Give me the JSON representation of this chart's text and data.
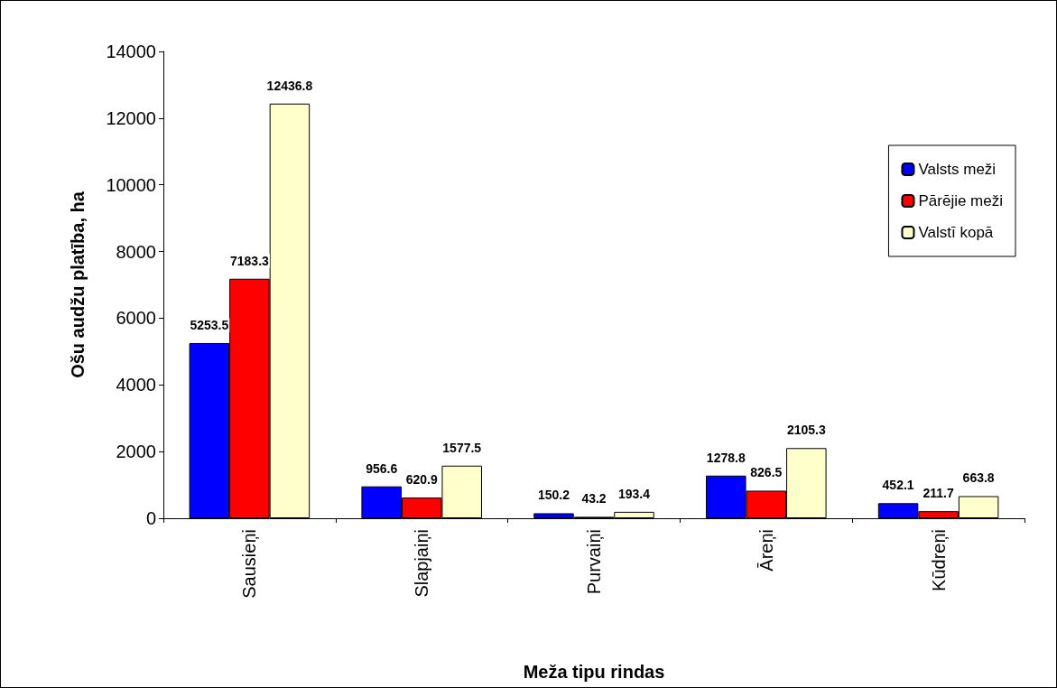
{
  "chart_data": {
    "type": "bar",
    "xlabel": "Meža tipu rindas",
    "ylabel": "Ošu audžu platība, ha",
    "categories": [
      "Sausieņi",
      "Slapjaiņi",
      "Purvaiņi",
      "Āreņi",
      "Kūdreņi"
    ],
    "series": [
      {
        "name": "Valsts meži",
        "color": "#0000ff",
        "values": [
          5253.5,
          956.6,
          150.2,
          1278.8,
          452.1
        ]
      },
      {
        "name": "Pārējie meži",
        "color": "#ff0000",
        "values": [
          7183.3,
          620.9,
          43.2,
          826.5,
          211.7
        ]
      },
      {
        "name": "Valstī kopā",
        "color": "#ffffcc",
        "values": [
          12436.8,
          1577.5,
          193.4,
          2105.3,
          663.8
        ]
      }
    ],
    "ylim": [
      0,
      14000
    ],
    "yticks": [
      0,
      2000,
      4000,
      6000,
      8000,
      10000,
      12000,
      14000
    ],
    "data_labels": true,
    "grid": false,
    "legend": "right"
  }
}
